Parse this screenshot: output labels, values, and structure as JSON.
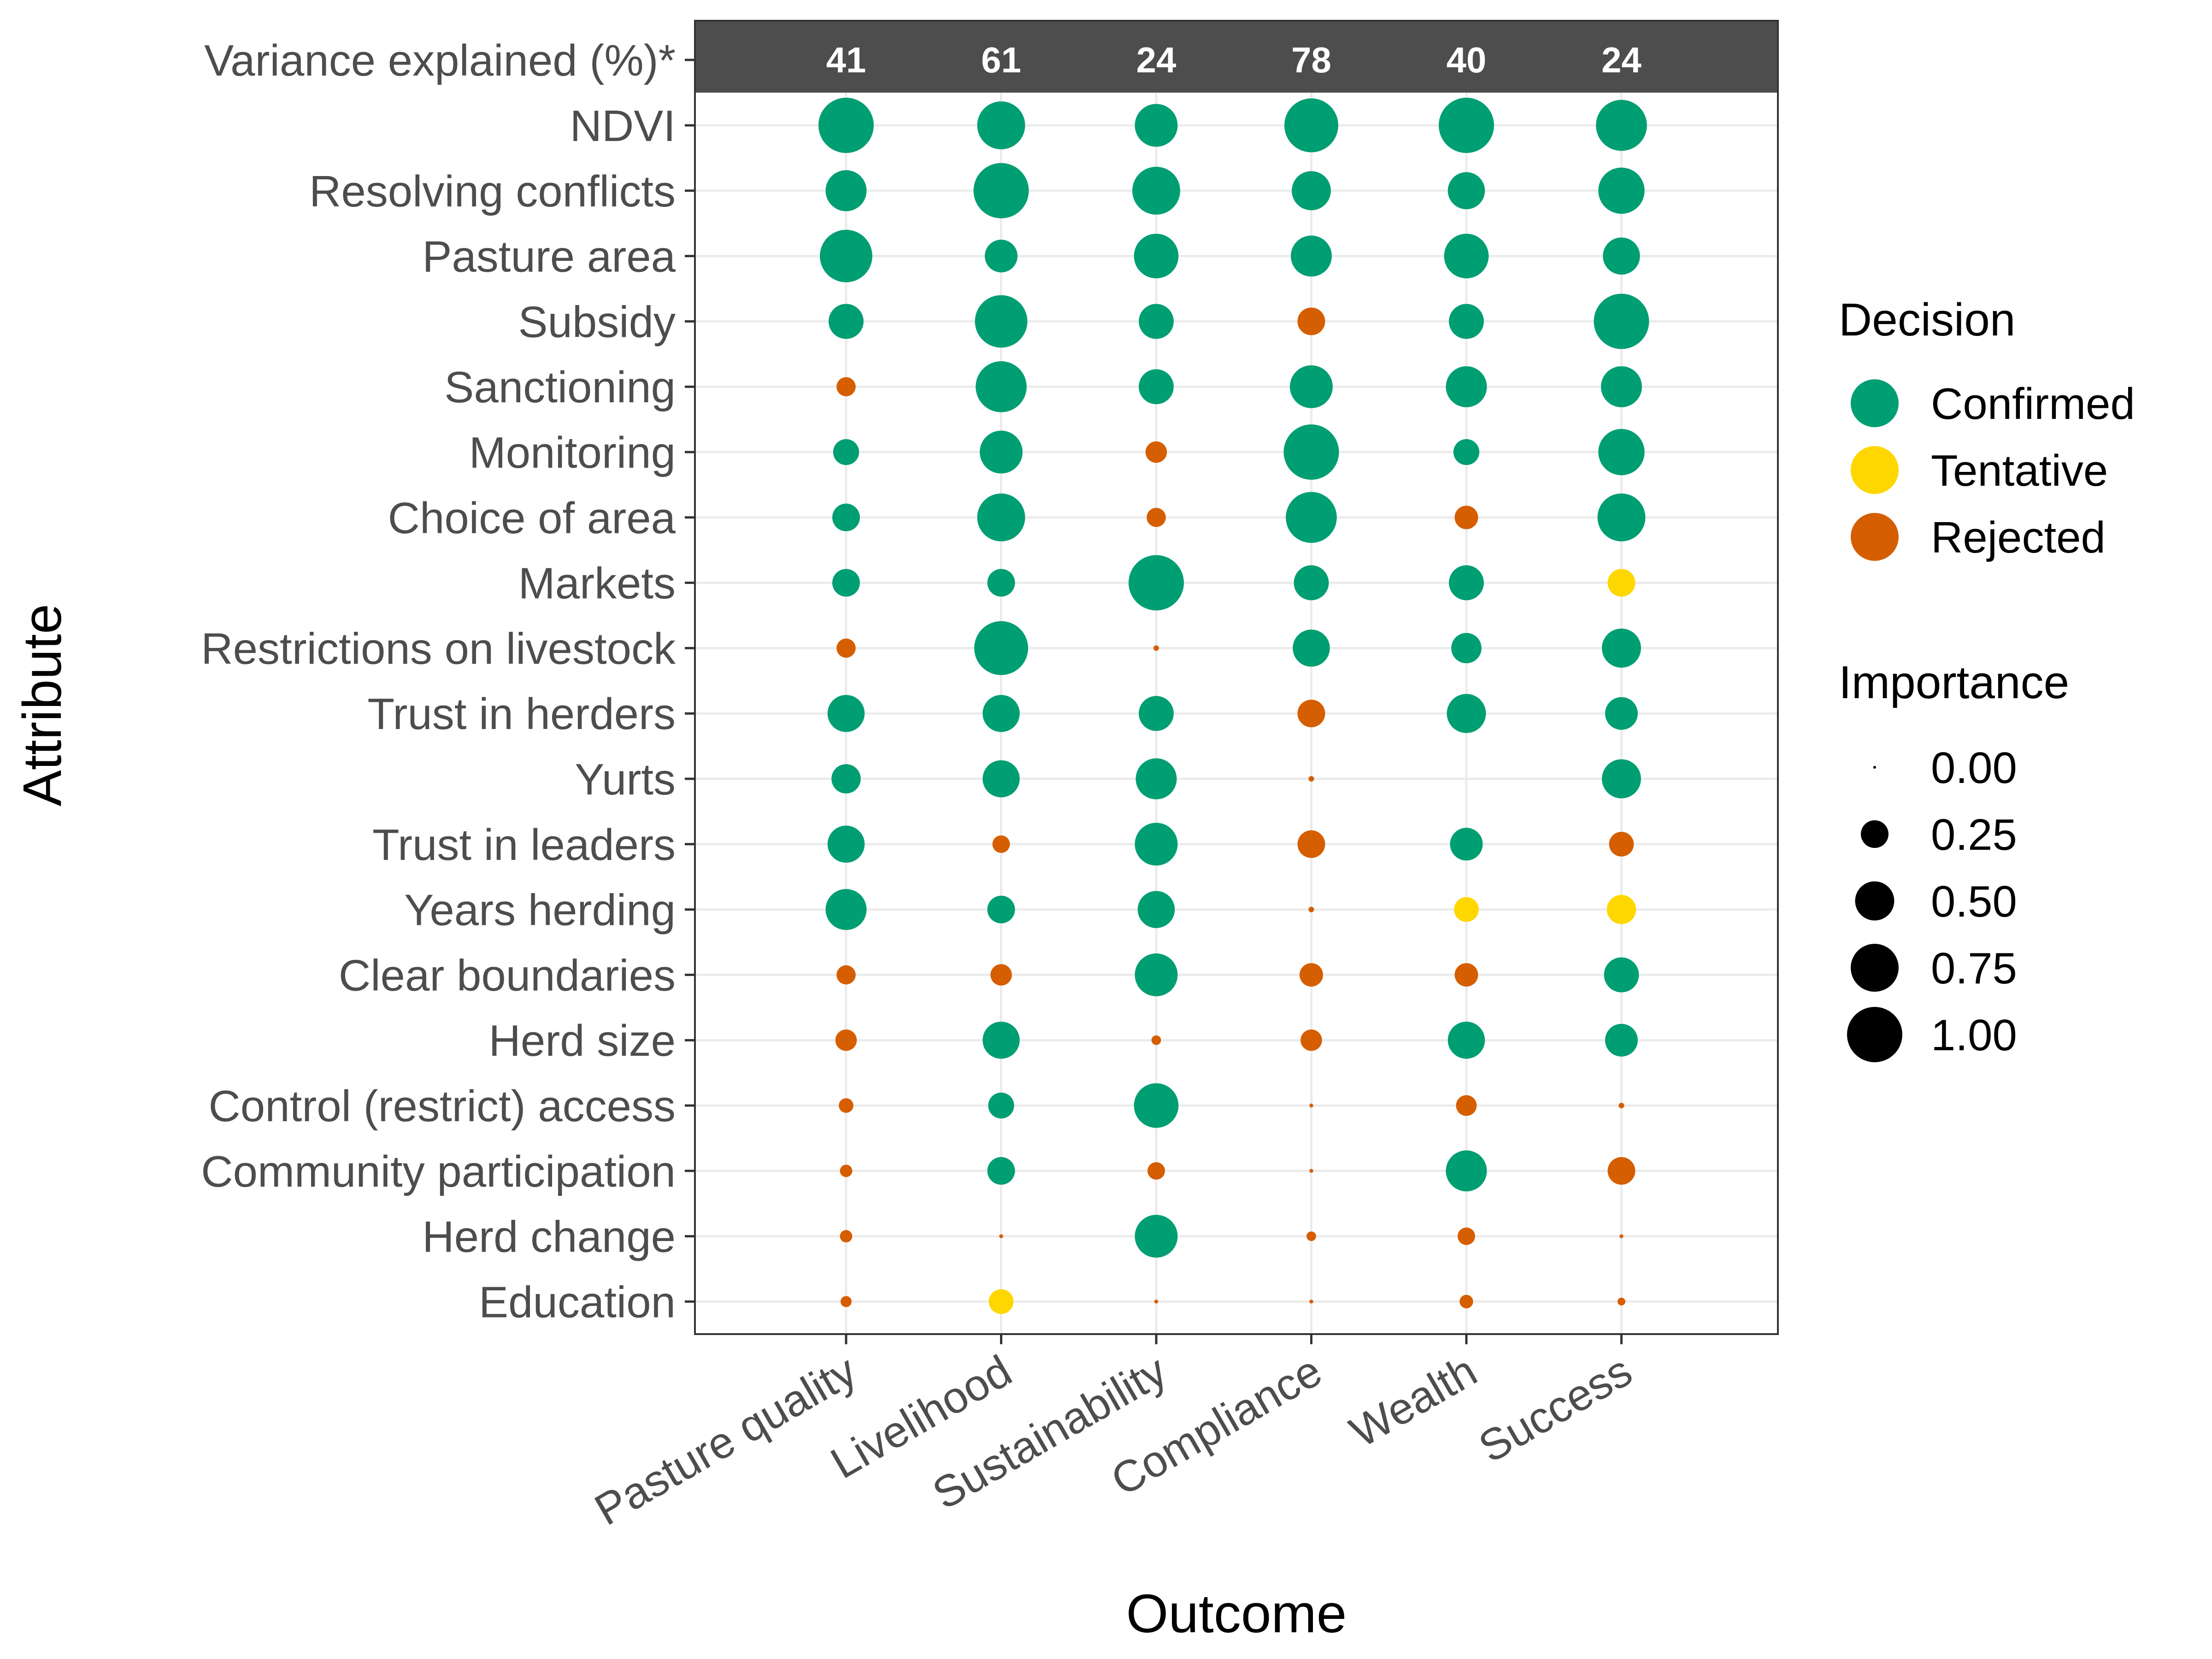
{
  "chart_data": {
    "type": "scatter",
    "xlabel": "Outcome",
    "ylabel": "Attribute",
    "categories": [
      "Pasture quality",
      "Livelihood",
      "Sustainability",
      "Compliance",
      "Wealth",
      "Success"
    ],
    "variance_row_label": "Variance explained (%)*",
    "variance_explained": [
      41,
      61,
      24,
      78,
      40,
      24
    ],
    "attributes": [
      "NDVI",
      "Resolving conflicts",
      "Pasture area",
      "Subsidy",
      "Sanctioning",
      "Monitoring",
      "Choice of area",
      "Markets",
      "Restrictions on livestock",
      "Trust in herders",
      "Yurts",
      "Trust in leaders",
      "Years herding",
      "Clear boundaries",
      "Herd size",
      "Control (restrict) access",
      "Community participation",
      "Herd change",
      "Education"
    ],
    "legend_decision": {
      "title": "Decision",
      "entries": [
        {
          "name": "Confirmed",
          "color": "#009E73"
        },
        {
          "name": "Tentative",
          "color": "#FFD700"
        },
        {
          "name": "Rejected",
          "color": "#D55E00"
        }
      ]
    },
    "legend_importance": {
      "title": "Importance",
      "values": [
        0.0,
        0.25,
        0.5,
        0.75,
        1.0
      ],
      "labels": [
        "0.00",
        "0.25",
        "0.50",
        "0.75",
        "1.00"
      ]
    },
    "grid": true,
    "points": [
      {
        "attribute": "NDVI",
        "values": [
          {
            "importance": 1.0,
            "decision": "Confirmed"
          },
          {
            "importance": 0.75,
            "decision": "Confirmed"
          },
          {
            "importance": 0.6,
            "decision": "Confirmed"
          },
          {
            "importance": 0.95,
            "decision": "Confirmed"
          },
          {
            "importance": 1.0,
            "decision": "Confirmed"
          },
          {
            "importance": 0.85,
            "decision": "Confirmed"
          }
        ]
      },
      {
        "attribute": "Resolving conflicts",
        "values": [
          {
            "importance": 0.55,
            "decision": "Confirmed"
          },
          {
            "importance": 1.0,
            "decision": "Confirmed"
          },
          {
            "importance": 0.75,
            "decision": "Confirmed"
          },
          {
            "importance": 0.5,
            "decision": "Confirmed"
          },
          {
            "importance": 0.45,
            "decision": "Confirmed"
          },
          {
            "importance": 0.7,
            "decision": "Confirmed"
          }
        ]
      },
      {
        "attribute": "Pasture area",
        "values": [
          {
            "importance": 0.9,
            "decision": "Confirmed"
          },
          {
            "importance": 0.35,
            "decision": "Confirmed"
          },
          {
            "importance": 0.65,
            "decision": "Confirmed"
          },
          {
            "importance": 0.55,
            "decision": "Confirmed"
          },
          {
            "importance": 0.65,
            "decision": "Confirmed"
          },
          {
            "importance": 0.45,
            "decision": "Confirmed"
          }
        ]
      },
      {
        "attribute": "Subsidy",
        "values": [
          {
            "importance": 0.4,
            "decision": "Confirmed"
          },
          {
            "importance": 0.9,
            "decision": "Confirmed"
          },
          {
            "importance": 0.4,
            "decision": "Confirmed"
          },
          {
            "importance": 0.25,
            "decision": "Rejected"
          },
          {
            "importance": 0.4,
            "decision": "Confirmed"
          },
          {
            "importance": 1.0,
            "decision": "Confirmed"
          }
        ]
      },
      {
        "attribute": "Sanctioning",
        "values": [
          {
            "importance": 0.12,
            "decision": "Rejected"
          },
          {
            "importance": 0.85,
            "decision": "Confirmed"
          },
          {
            "importance": 0.4,
            "decision": "Confirmed"
          },
          {
            "importance": 0.6,
            "decision": "Confirmed"
          },
          {
            "importance": 0.55,
            "decision": "Confirmed"
          },
          {
            "importance": 0.55,
            "decision": "Confirmed"
          }
        ]
      },
      {
        "attribute": "Monitoring",
        "values": [
          {
            "importance": 0.22,
            "decision": "Confirmed"
          },
          {
            "importance": 0.6,
            "decision": "Confirmed"
          },
          {
            "importance": 0.15,
            "decision": "Rejected"
          },
          {
            "importance": 1.0,
            "decision": "Confirmed"
          },
          {
            "importance": 0.22,
            "decision": "Confirmed"
          },
          {
            "importance": 0.7,
            "decision": "Confirmed"
          }
        ]
      },
      {
        "attribute": "Choice of area",
        "values": [
          {
            "importance": 0.25,
            "decision": "Confirmed"
          },
          {
            "importance": 0.75,
            "decision": "Confirmed"
          },
          {
            "importance": 0.12,
            "decision": "Rejected"
          },
          {
            "importance": 0.85,
            "decision": "Confirmed"
          },
          {
            "importance": 0.18,
            "decision": "Rejected"
          },
          {
            "importance": 0.75,
            "decision": "Confirmed"
          }
        ]
      },
      {
        "attribute": "Markets",
        "values": [
          {
            "importance": 0.25,
            "decision": "Confirmed"
          },
          {
            "importance": 0.25,
            "decision": "Confirmed"
          },
          {
            "importance": 1.0,
            "decision": "Confirmed"
          },
          {
            "importance": 0.4,
            "decision": "Confirmed"
          },
          {
            "importance": 0.4,
            "decision": "Confirmed"
          },
          {
            "importance": 0.25,
            "decision": "Tentative"
          }
        ]
      },
      {
        "attribute": "Restrictions on livestock",
        "values": [
          {
            "importance": 0.12,
            "decision": "Rejected"
          },
          {
            "importance": 0.95,
            "decision": "Confirmed"
          },
          {
            "importance": 0.01,
            "decision": "Rejected"
          },
          {
            "importance": 0.45,
            "decision": "Confirmed"
          },
          {
            "importance": 0.3,
            "decision": "Confirmed"
          },
          {
            "importance": 0.5,
            "decision": "Confirmed"
          }
        ]
      },
      {
        "attribute": "Trust in herders",
        "values": [
          {
            "importance": 0.45,
            "decision": "Confirmed"
          },
          {
            "importance": 0.45,
            "decision": "Confirmed"
          },
          {
            "importance": 0.4,
            "decision": "Confirmed"
          },
          {
            "importance": 0.25,
            "decision": "Rejected"
          },
          {
            "importance": 0.5,
            "decision": "Confirmed"
          },
          {
            "importance": 0.35,
            "decision": "Confirmed"
          }
        ]
      },
      {
        "attribute": "Yurts",
        "values": [
          {
            "importance": 0.28,
            "decision": "Confirmed"
          },
          {
            "importance": 0.45,
            "decision": "Confirmed"
          },
          {
            "importance": 0.55,
            "decision": "Confirmed"
          },
          {
            "importance": 0.01,
            "decision": "Rejected"
          },
          {
            "importance": 0.0,
            "decision": "Rejected"
          },
          {
            "importance": 0.5,
            "decision": "Confirmed"
          }
        ]
      },
      {
        "attribute": "Trust in leaders",
        "values": [
          {
            "importance": 0.45,
            "decision": "Confirmed"
          },
          {
            "importance": 0.1,
            "decision": "Rejected"
          },
          {
            "importance": 0.6,
            "decision": "Confirmed"
          },
          {
            "importance": 0.25,
            "decision": "Rejected"
          },
          {
            "importance": 0.35,
            "decision": "Confirmed"
          },
          {
            "importance": 0.2,
            "decision": "Rejected"
          }
        ]
      },
      {
        "attribute": "Years herding",
        "values": [
          {
            "importance": 0.55,
            "decision": "Confirmed"
          },
          {
            "importance": 0.25,
            "decision": "Confirmed"
          },
          {
            "importance": 0.45,
            "decision": "Confirmed"
          },
          {
            "importance": 0.01,
            "decision": "Rejected"
          },
          {
            "importance": 0.2,
            "decision": "Tentative"
          },
          {
            "importance": 0.28,
            "decision": "Tentative"
          }
        ]
      },
      {
        "attribute": "Clear boundaries",
        "values": [
          {
            "importance": 0.12,
            "decision": "Rejected"
          },
          {
            "importance": 0.15,
            "decision": "Rejected"
          },
          {
            "importance": 0.6,
            "decision": "Confirmed"
          },
          {
            "importance": 0.18,
            "decision": "Rejected"
          },
          {
            "importance": 0.18,
            "decision": "Rejected"
          },
          {
            "importance": 0.4,
            "decision": "Confirmed"
          }
        ]
      },
      {
        "attribute": "Herd size",
        "values": [
          {
            "importance": 0.15,
            "decision": "Rejected"
          },
          {
            "importance": 0.45,
            "decision": "Confirmed"
          },
          {
            "importance": 0.03,
            "decision": "Rejected"
          },
          {
            "importance": 0.15,
            "decision": "Rejected"
          },
          {
            "importance": 0.45,
            "decision": "Confirmed"
          },
          {
            "importance": 0.35,
            "decision": "Confirmed"
          }
        ]
      },
      {
        "attribute": "Control (restrict) access",
        "values": [
          {
            "importance": 0.07,
            "decision": "Rejected"
          },
          {
            "importance": 0.22,
            "decision": "Confirmed"
          },
          {
            "importance": 0.65,
            "decision": "Confirmed"
          },
          {
            "importance": 0.005,
            "decision": "Rejected"
          },
          {
            "importance": 0.14,
            "decision": "Rejected"
          },
          {
            "importance": 0.01,
            "decision": "Rejected"
          }
        ]
      },
      {
        "attribute": "Community participation",
        "values": [
          {
            "importance": 0.05,
            "decision": "Rejected"
          },
          {
            "importance": 0.25,
            "decision": "Confirmed"
          },
          {
            "importance": 0.1,
            "decision": "Rejected"
          },
          {
            "importance": 0.005,
            "decision": "Rejected"
          },
          {
            "importance": 0.55,
            "decision": "Confirmed"
          },
          {
            "importance": 0.25,
            "decision": "Rejected"
          }
        ]
      },
      {
        "attribute": "Herd change",
        "values": [
          {
            "importance": 0.05,
            "decision": "Rejected"
          },
          {
            "importance": 0.005,
            "decision": "Rejected"
          },
          {
            "importance": 0.6,
            "decision": "Confirmed"
          },
          {
            "importance": 0.03,
            "decision": "Rejected"
          },
          {
            "importance": 0.1,
            "decision": "Rejected"
          },
          {
            "importance": 0.005,
            "decision": "Rejected"
          }
        ]
      },
      {
        "attribute": "Education",
        "values": [
          {
            "importance": 0.04,
            "decision": "Rejected"
          },
          {
            "importance": 0.2,
            "decision": "Tentative"
          },
          {
            "importance": 0.005,
            "decision": "Rejected"
          },
          {
            "importance": 0.005,
            "decision": "Rejected"
          },
          {
            "importance": 0.06,
            "decision": "Rejected"
          },
          {
            "importance": 0.02,
            "decision": "Rejected"
          }
        ]
      }
    ]
  }
}
